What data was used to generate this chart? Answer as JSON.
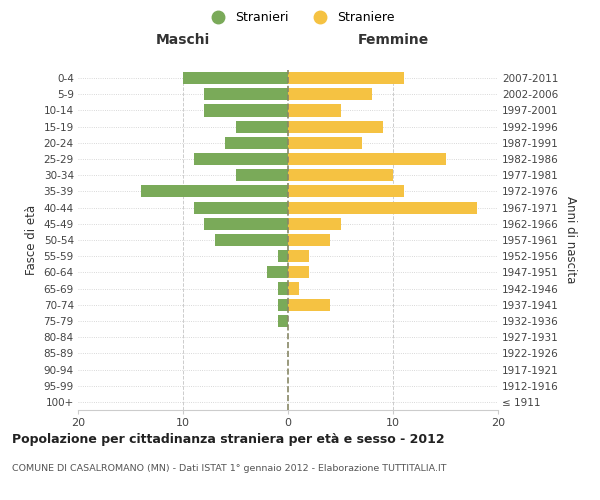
{
  "age_groups": [
    "100+",
    "95-99",
    "90-94",
    "85-89",
    "80-84",
    "75-79",
    "70-74",
    "65-69",
    "60-64",
    "55-59",
    "50-54",
    "45-49",
    "40-44",
    "35-39",
    "30-34",
    "25-29",
    "20-24",
    "15-19",
    "10-14",
    "5-9",
    "0-4"
  ],
  "birth_years": [
    "≤ 1911",
    "1912-1916",
    "1917-1921",
    "1922-1926",
    "1927-1931",
    "1932-1936",
    "1937-1941",
    "1942-1946",
    "1947-1951",
    "1952-1956",
    "1957-1961",
    "1962-1966",
    "1967-1971",
    "1972-1976",
    "1977-1981",
    "1982-1986",
    "1987-1991",
    "1992-1996",
    "1997-2001",
    "2002-2006",
    "2007-2011"
  ],
  "maschi": [
    0,
    0,
    0,
    0,
    0,
    1,
    1,
    1,
    2,
    1,
    7,
    8,
    9,
    14,
    5,
    9,
    6,
    5,
    8,
    8,
    10
  ],
  "femmine": [
    0,
    0,
    0,
    0,
    0,
    0,
    4,
    1,
    2,
    2,
    4,
    5,
    18,
    11,
    10,
    15,
    7,
    9,
    5,
    8,
    11
  ],
  "male_color": "#7aaa59",
  "female_color": "#f5c242",
  "background_color": "#ffffff",
  "grid_color": "#cccccc",
  "title": "Popolazione per cittadinanza straniera per età e sesso - 2012",
  "subtitle": "COMUNE DI CASALROMANO (MN) - Dati ISTAT 1° gennaio 2012 - Elaborazione TUTTITALIA.IT",
  "ylabel_left": "Fasce di età",
  "ylabel_right": "Anni di nascita",
  "xlabel_left": "Maschi",
  "xlabel_right": "Femmine",
  "legend_male": "Stranieri",
  "legend_female": "Straniere",
  "xlim": 20,
  "bar_height": 0.75
}
